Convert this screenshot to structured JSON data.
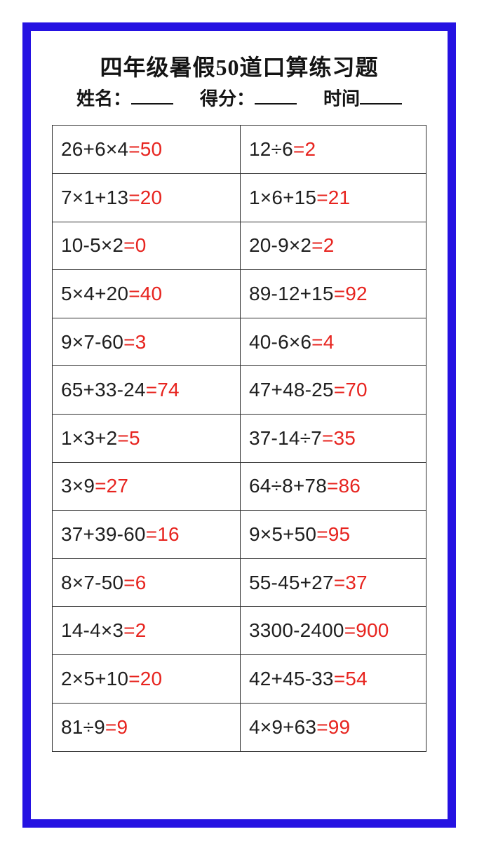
{
  "page": {
    "title": "四年级暑假50道口算练习题",
    "meta": {
      "name_label": "姓名：",
      "score_label": "得分：",
      "time_label": "时间"
    },
    "colors": {
      "frame_blue": "#2512e2",
      "answer_red": "#e7241f",
      "text_black": "#1f1f1f",
      "grid_line": "#2f2f2f"
    }
  },
  "worksheet": {
    "rows": [
      {
        "left": {
          "q": "26+6×4",
          "a": "=50"
        },
        "right": {
          "q": "12÷6",
          "a": "=2"
        }
      },
      {
        "left": {
          "q": "7×1+13",
          "a": "=20"
        },
        "right": {
          "q": "1×6+15",
          "a": "=21"
        }
      },
      {
        "left": {
          "q": "10-5×2",
          "a": "=0"
        },
        "right": {
          "q": "20-9×2",
          "a": "=2"
        }
      },
      {
        "left": {
          "q": "5×4+20",
          "a": "=40"
        },
        "right": {
          "q": "89-12+15",
          "a": "=92"
        }
      },
      {
        "left": {
          "q": "9×7-60",
          "a": "=3"
        },
        "right": {
          "q": "40-6×6",
          "a": "=4"
        }
      },
      {
        "left": {
          "q": "65+33-24",
          "a": "=74"
        },
        "right": {
          "q": "47+48-25",
          "a": "=70"
        }
      },
      {
        "left": {
          "q": "1×3+2",
          "a": "=5"
        },
        "right": {
          "q": "37-14÷7",
          "a": "=35"
        }
      },
      {
        "left": {
          "q": "3×9",
          "a": "=27"
        },
        "right": {
          "q": "64÷8+78",
          "a": "=86"
        }
      },
      {
        "left": {
          "q": "37+39-60",
          "a": "=16"
        },
        "right": {
          "q": "9×5+50",
          "a": "=95"
        }
      },
      {
        "left": {
          "q": "8×7-50",
          "a": "=6"
        },
        "right": {
          "q": "55-45+27",
          "a": "=37"
        }
      },
      {
        "left": {
          "q": "14-4×3",
          "a": "=2"
        },
        "right": {
          "q": "3300-2400",
          "a": "=900"
        }
      },
      {
        "left": {
          "q": "2×5+10",
          "a": "=20"
        },
        "right": {
          "q": "42+45-33",
          "a": "=54"
        }
      },
      {
        "left": {
          "q": "81÷9",
          "a": "=9"
        },
        "right": {
          "q": "4×9+63",
          "a": "=99"
        }
      }
    ]
  }
}
